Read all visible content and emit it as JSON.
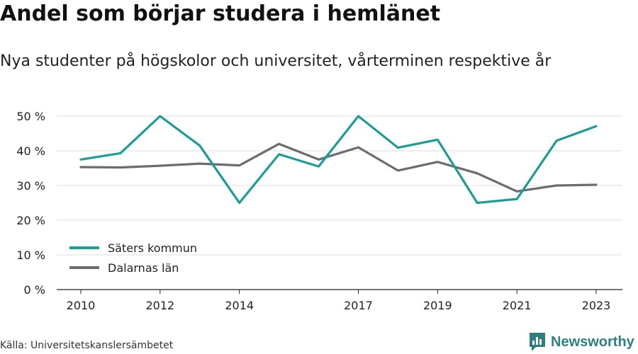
{
  "header": {
    "title": "Andel som börjar studera i hemlänet",
    "subtitle": "Nya studenter på högskolor och universitet, vårterminen respektive år"
  },
  "footer": {
    "source": "Källa: Universitetskanslersämbetet",
    "brand": "Newsworthy",
    "brand_icon": "bar-chart-icon",
    "brand_color": "#2f7f80"
  },
  "chart_data": {
    "type": "line",
    "title": "Andel som börjar studera i hemlänet",
    "subtitle": "Nya studenter på högskolor och universitet, vårterminen respektive år",
    "xlabel": "",
    "ylabel": "",
    "x": [
      2010,
      2011,
      2012,
      2013,
      2014,
      2015,
      2016,
      2017,
      2018,
      2019,
      2020,
      2021,
      2022,
      2023
    ],
    "x_tick_labels": [
      "2010",
      "2012",
      "2014",
      "2017",
      "2019",
      "2021",
      "2023"
    ],
    "y_tick_values": [
      0,
      10,
      20,
      30,
      40,
      50
    ],
    "y_tick_labels": [
      "0 %",
      "10 %",
      "20 %",
      "30 %",
      "40 %",
      "50 %"
    ],
    "ylim": [
      0,
      50
    ],
    "xlim": [
      2010,
      2023
    ],
    "grid": true,
    "legend_position": "bottom-left",
    "series": [
      {
        "name": "Säters kommun",
        "color": "#1a9e94",
        "values": [
          37.5,
          39.3,
          50.0,
          41.5,
          25.0,
          39.0,
          35.5,
          50.0,
          40.9,
          43.2,
          25.0,
          26.1,
          42.9,
          47.1
        ]
      },
      {
        "name": "Dalarnas län",
        "color": "#6c6c70",
        "values": [
          35.3,
          35.2,
          35.7,
          36.3,
          35.8,
          42.0,
          37.5,
          41.0,
          34.3,
          36.8,
          33.5,
          28.3,
          30.0,
          30.2
        ]
      }
    ]
  }
}
